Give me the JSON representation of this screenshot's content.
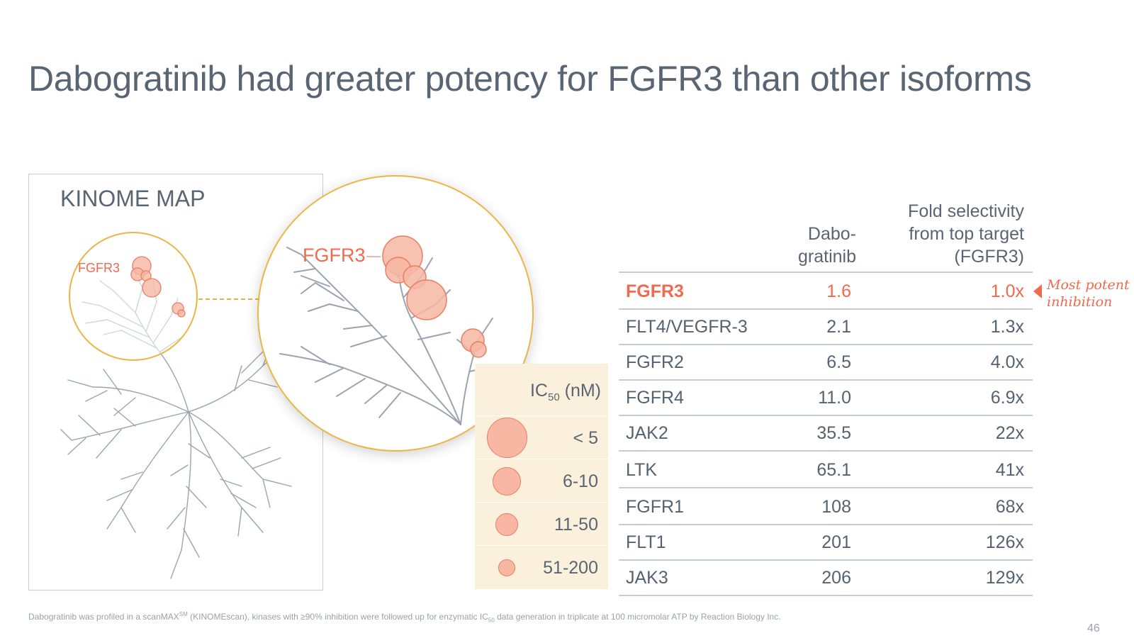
{
  "slide": {
    "title": "Dabogratinib had greater potency for FGFR3 than other isoforms",
    "page_number": "46"
  },
  "kinome_map": {
    "title": "KINOME MAP",
    "highlight_label": "FGFR3",
    "zoom_label": "FGFR3"
  },
  "legend": {
    "header_main": "IC",
    "header_sub": "50",
    "header_unit": " (nM)",
    "items": [
      {
        "label": "< 5",
        "size": "largest"
      },
      {
        "label": "6-10",
        "size": "large"
      },
      {
        "label": "11-50",
        "size": "medium"
      },
      {
        "label": "51-200",
        "size": "small"
      }
    ]
  },
  "table": {
    "col_ic50_header_line1": "Dabo-",
    "col_ic50_header_line2": "gratinib",
    "col_fold_header_line1": "Fold selectivity",
    "col_fold_header_line2": "from top target",
    "col_fold_header_line3": "(FGFR3)",
    "rows": [
      {
        "kinase": "FGFR3",
        "ic50": "1.6",
        "fold": "1.0x",
        "highlight": true
      },
      {
        "kinase": "FLT4/VEGFR-3",
        "ic50": "2.1",
        "fold": "1.3x"
      },
      {
        "kinase": "FGFR2",
        "ic50": "6.5",
        "fold": "4.0x"
      },
      {
        "kinase": "FGFR4",
        "ic50": "11.0",
        "fold": "6.9x"
      },
      {
        "kinase": "JAK2",
        "ic50": "35.5",
        "fold": "22x"
      },
      {
        "kinase": "LTK",
        "ic50": "65.1",
        "fold": "41x"
      },
      {
        "kinase": "FGFR1",
        "ic50": "108",
        "fold": "68x"
      },
      {
        "kinase": "FLT1",
        "ic50": "201",
        "fold": "126x"
      },
      {
        "kinase": "JAK3",
        "ic50": "206",
        "fold": "129x"
      }
    ]
  },
  "callout": {
    "line1": "Most potent",
    "line2": "inhibition"
  },
  "footnote": {
    "part1": "Dabogratinib was profiled in a scanMAX",
    "sup": "SM",
    "part2": " (KINOMEscan), kinases with ≥90% inhibition were followed up for enzymatic IC",
    "sub": "50",
    "part3": " data generation in triplicate at 100 micromolar ATP by Reaction Biology Inc."
  },
  "colors": {
    "accent": "#f06a4e",
    "highlight_circle": "#ecb546",
    "legend_bg": "#fbf0dc",
    "tree": "#9ba4ae"
  }
}
